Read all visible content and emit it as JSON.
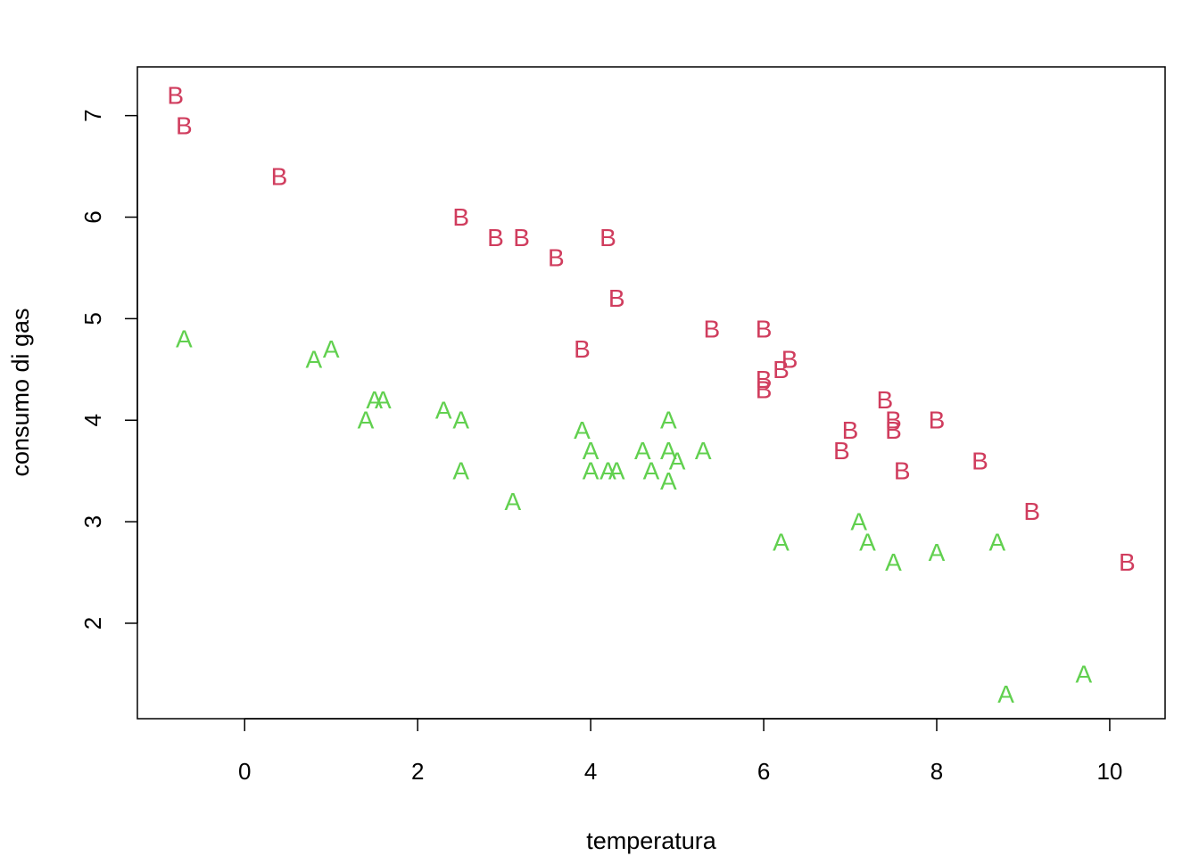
{
  "chart_data": {
    "type": "scatter",
    "title": "",
    "xlabel": "temperatura",
    "ylabel": "consumo di gas",
    "xlim": [
      -1.24,
      10.64
    ],
    "ylim": [
      1.06,
      7.48
    ],
    "x_ticks": [
      0,
      2,
      4,
      6,
      8,
      10
    ],
    "y_ticks": [
      2,
      3,
      4,
      5,
      6,
      7
    ],
    "grid": false,
    "legend": "none",
    "series": [
      {
        "marker": "A",
        "color": "#61d04f",
        "points": [
          [
            -0.7,
            4.8
          ],
          [
            0.8,
            4.6
          ],
          [
            1.0,
            4.7
          ],
          [
            1.4,
            4.0
          ],
          [
            1.5,
            4.2
          ],
          [
            1.6,
            4.2
          ],
          [
            2.3,
            4.1
          ],
          [
            2.5,
            4.0
          ],
          [
            2.5,
            3.5
          ],
          [
            3.1,
            3.2
          ],
          [
            3.9,
            3.9
          ],
          [
            4.0,
            3.7
          ],
          [
            4.0,
            3.5
          ],
          [
            4.2,
            3.5
          ],
          [
            4.3,
            3.5
          ],
          [
            4.6,
            3.7
          ],
          [
            4.7,
            3.5
          ],
          [
            4.9,
            4.0
          ],
          [
            4.9,
            3.7
          ],
          [
            4.9,
            3.4
          ],
          [
            5.0,
            3.6
          ],
          [
            5.3,
            3.7
          ],
          [
            6.2,
            2.8
          ],
          [
            7.1,
            3.0
          ],
          [
            7.2,
            2.8
          ],
          [
            7.5,
            2.6
          ],
          [
            8.0,
            2.7
          ],
          [
            8.7,
            2.8
          ],
          [
            8.8,
            1.3
          ],
          [
            9.7,
            1.5
          ]
        ]
      },
      {
        "marker": "B",
        "color": "#d03d5e",
        "points": [
          [
            -0.8,
            7.2
          ],
          [
            -0.7,
            6.9
          ],
          [
            0.4,
            6.4
          ],
          [
            2.5,
            6.0
          ],
          [
            2.9,
            5.8
          ],
          [
            3.2,
            5.8
          ],
          [
            3.6,
            5.6
          ],
          [
            3.9,
            4.7
          ],
          [
            4.2,
            5.8
          ],
          [
            4.3,
            5.2
          ],
          [
            5.4,
            4.9
          ],
          [
            6.0,
            4.9
          ],
          [
            6.0,
            4.4
          ],
          [
            6.0,
            4.3
          ],
          [
            6.2,
            4.5
          ],
          [
            6.3,
            4.6
          ],
          [
            6.9,
            3.7
          ],
          [
            7.0,
            3.9
          ],
          [
            7.4,
            4.2
          ],
          [
            7.5,
            4.0
          ],
          [
            7.5,
            3.9
          ],
          [
            7.6,
            3.5
          ],
          [
            8.0,
            4.0
          ],
          [
            8.5,
            3.6
          ],
          [
            9.1,
            3.1
          ],
          [
            10.2,
            2.6
          ]
        ]
      }
    ]
  }
}
